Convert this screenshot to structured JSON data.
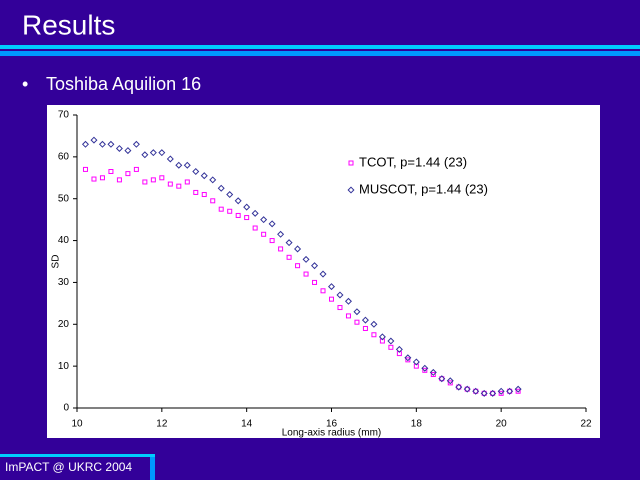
{
  "slide": {
    "title": "Results",
    "bullet": "Toshiba Aquilion 16",
    "footer": "ImPACT @ UKRC 2004"
  },
  "chart_data": {
    "type": "scatter",
    "xlabel": "Long-axis radius (mm)",
    "ylabel": "SD",
    "xlim": [
      10,
      22
    ],
    "xticks": [
      10,
      12,
      14,
      16,
      18,
      20,
      22
    ],
    "ylim": [
      0,
      70
    ],
    "yticks": [
      0,
      10,
      20,
      30,
      40,
      50,
      60,
      70
    ],
    "legend": "upper right",
    "x": [
      10.2,
      10.4,
      10.6,
      10.8,
      11.0,
      11.2,
      11.4,
      11.6,
      11.8,
      12.0,
      12.2,
      12.4,
      12.6,
      12.8,
      13.0,
      13.2,
      13.4,
      13.6,
      13.8,
      14.0,
      14.2,
      14.4,
      14.6,
      14.8,
      15.0,
      15.2,
      15.4,
      15.6,
      15.8,
      16.0,
      16.2,
      16.4,
      16.6,
      16.8,
      17.0,
      17.2,
      17.4,
      17.6,
      17.8,
      18.0,
      18.2,
      18.4,
      18.6,
      18.8,
      19.0,
      19.2,
      19.4,
      19.6,
      19.8,
      20.0,
      20.2,
      20.4
    ],
    "series": [
      {
        "name": "TCOT, p=1.44 (23)",
        "color": "#ff00ff",
        "marker": "square",
        "values": [
          57,
          54.7,
          55,
          56.5,
          54.5,
          56,
          57,
          54,
          54.5,
          55,
          53.5,
          53,
          54,
          51.5,
          51,
          49.5,
          47.5,
          47,
          46,
          45.5,
          43,
          41.5,
          40,
          38,
          36,
          34,
          32,
          30,
          28,
          26,
          24,
          22,
          20.5,
          19,
          17.5,
          16,
          14.5,
          13,
          11.5,
          10,
          9,
          8,
          7,
          6,
          5,
          4.5,
          4,
          3.5,
          3.5,
          3.5,
          4,
          4
        ]
      },
      {
        "name": "MUSCOT, p=1.44 (23)",
        "color": "#333399",
        "marker": "diamond",
        "values": [
          63,
          64,
          63,
          63,
          62,
          61.5,
          63,
          60.5,
          61,
          61,
          59.5,
          58,
          58,
          56.5,
          55.5,
          54.5,
          52.5,
          51,
          49.5,
          48,
          46.5,
          45,
          44,
          41.5,
          39.5,
          38,
          35.5,
          34,
          32,
          29,
          27,
          25.5,
          23,
          21,
          20,
          17,
          16,
          14,
          12,
          11,
          9.5,
          8.5,
          7,
          6.5,
          5,
          4.5,
          4,
          3.5,
          3.5,
          4,
          4,
          4.5
        ]
      }
    ]
  }
}
